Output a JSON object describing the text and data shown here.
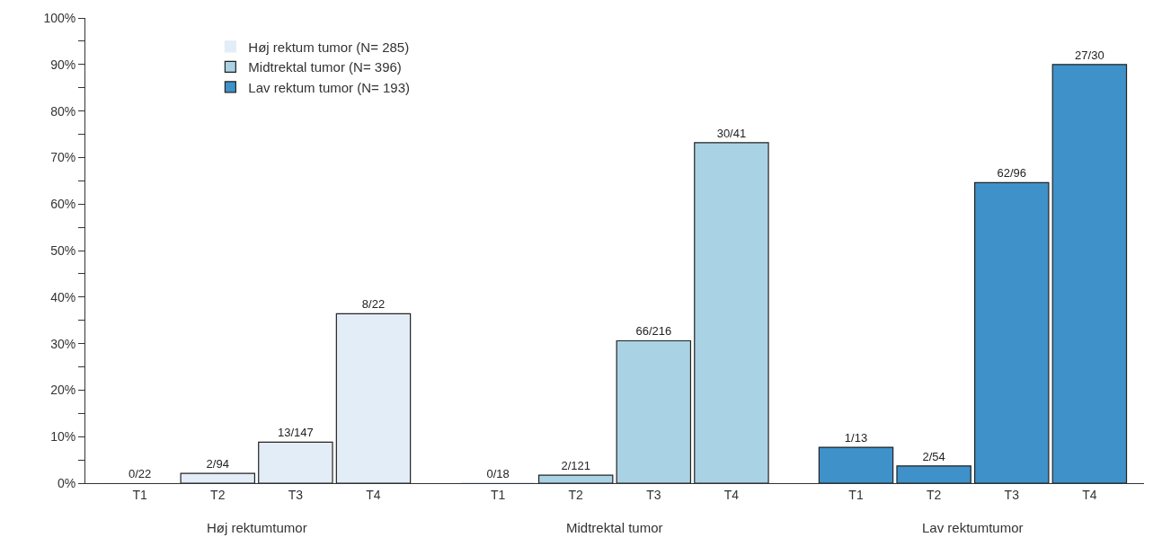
{
  "chart_data": {
    "type": "bar",
    "categories": [
      "T1",
      "T2",
      "T3",
      "T4",
      "T1",
      "T2",
      "T3",
      "T4",
      "T1",
      "T2",
      "T3",
      "T4"
    ],
    "series": [
      {
        "name": "Høj rektum tumor (N= 285)",
        "color": "#e3edf7",
        "values": [
          0,
          2.1,
          8.8,
          36.4,
          null,
          null,
          null,
          null,
          null,
          null,
          null,
          null
        ],
        "value_labels": [
          "0/22",
          "2/94",
          "13/147",
          "8/22",
          null,
          null,
          null,
          null,
          null,
          null,
          null,
          null
        ]
      },
      {
        "name": "Midtrektal tumor (N= 396)",
        "color": "#aad2e5",
        "values": [
          null,
          null,
          null,
          null,
          0,
          1.7,
          30.6,
          73.2,
          null,
          null,
          null,
          null
        ],
        "value_labels": [
          null,
          null,
          null,
          null,
          "0/18",
          "2/121",
          "66/216",
          "30/41",
          null,
          null,
          null,
          null
        ]
      },
      {
        "name": "Lav rektum tumor (N= 193)",
        "color": "#3e92c9",
        "values": [
          null,
          null,
          null,
          null,
          null,
          null,
          null,
          null,
          7.7,
          3.7,
          64.6,
          90
        ],
        "value_labels": [
          null,
          null,
          null,
          null,
          null,
          null,
          null,
          null,
          "1/13",
          "2/54",
          "62/96",
          "27/30"
        ]
      }
    ],
    "ylim": [
      0,
      100
    ],
    "yticks": [
      {
        "value": 0,
        "label": "0%"
      },
      {
        "value": 5,
        "label": null
      },
      {
        "value": 10,
        "label": "10%"
      },
      {
        "value": 15,
        "label": null
      },
      {
        "value": 20,
        "label": "20%"
      },
      {
        "value": 25,
        "label": null
      },
      {
        "value": 30,
        "label": "30%"
      },
      {
        "value": 35,
        "label": null
      },
      {
        "value": 40,
        "label": "40%"
      },
      {
        "value": 45,
        "label": null
      },
      {
        "value": 50,
        "label": "50%"
      },
      {
        "value": 55,
        "label": null
      },
      {
        "value": 60,
        "label": "60%"
      },
      {
        "value": 65,
        "label": null
      },
      {
        "value": 70,
        "label": "70%"
      },
      {
        "value": 75,
        "label": null
      },
      {
        "value": 80,
        "label": "80%"
      },
      {
        "value": 85,
        "label": null
      },
      {
        "value": 90,
        "label": "90%"
      },
      {
        "value": 95,
        "label": null
      },
      {
        "value": 100,
        "label": "100%"
      }
    ],
    "annotations": [
      "Høj rektumtumor",
      "Midtrektal tumor",
      "Lav rektumtumor"
    ],
    "legend": "top left"
  }
}
